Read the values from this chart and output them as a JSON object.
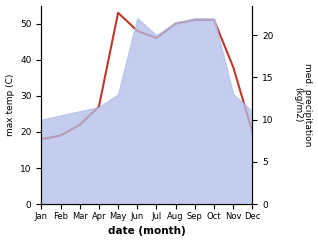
{
  "months": [
    "Jan",
    "Feb",
    "Mar",
    "Apr",
    "May",
    "Jun",
    "Jul",
    "Aug",
    "Sep",
    "Oct",
    "Nov",
    "Dec"
  ],
  "month_x": [
    1,
    2,
    3,
    4,
    5,
    6,
    7,
    8,
    9,
    10,
    11,
    12
  ],
  "max_temp": [
    18,
    19,
    22,
    27,
    53,
    48,
    46,
    50,
    51,
    51,
    38,
    20
  ],
  "precipitation": [
    10,
    10.5,
    11,
    11.5,
    13,
    22,
    20,
    21.5,
    22,
    22,
    13,
    11
  ],
  "ylim_left": [
    0,
    55
  ],
  "ylim_right": [
    0,
    23.5
  ],
  "yticks_left": [
    0,
    10,
    20,
    30,
    40,
    50
  ],
  "yticks_right": [
    0,
    5,
    10,
    15,
    20
  ],
  "ylabel_left": "max temp (C)",
  "ylabel_right": "med. precipitation\n(kg/m2)",
  "xlabel": "date (month)",
  "temp_color": "#c0392b",
  "precip_fill_color": "#b0bde8",
  "precip_alpha": 0.75,
  "background_color": "#ffffff"
}
